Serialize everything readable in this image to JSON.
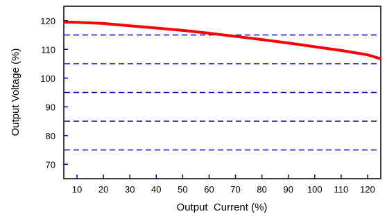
{
  "chart_data": {
    "type": "line",
    "title": "",
    "xlabel": "Output  Current (%)",
    "ylabel": "Output Voltage (%)",
    "xlim": [
      5,
      125
    ],
    "ylim": [
      65,
      125
    ],
    "xticks": [
      10,
      20,
      30,
      40,
      50,
      60,
      70,
      80,
      90,
      100,
      110,
      120
    ],
    "yticks": [
      70,
      80,
      90,
      100,
      110,
      120
    ],
    "gridlines_y": [
      75,
      85,
      95,
      105,
      115
    ],
    "grid": "horizontal dashed",
    "legend": "none",
    "series": [
      {
        "color": "#ff0000",
        "x": [
          5,
          10,
          20,
          30,
          40,
          50,
          60,
          70,
          80,
          90,
          100,
          110,
          120,
          125
        ],
        "y": [
          119.5,
          119.4,
          119.0,
          118.2,
          117.4,
          116.6,
          115.6,
          114.5,
          113.4,
          112.2,
          110.9,
          109.6,
          108.1,
          106.7
        ]
      }
    ],
    "colors": {
      "grid": "#0000cc",
      "axis_ticks": "#0000cc",
      "frame": "#000000"
    }
  }
}
